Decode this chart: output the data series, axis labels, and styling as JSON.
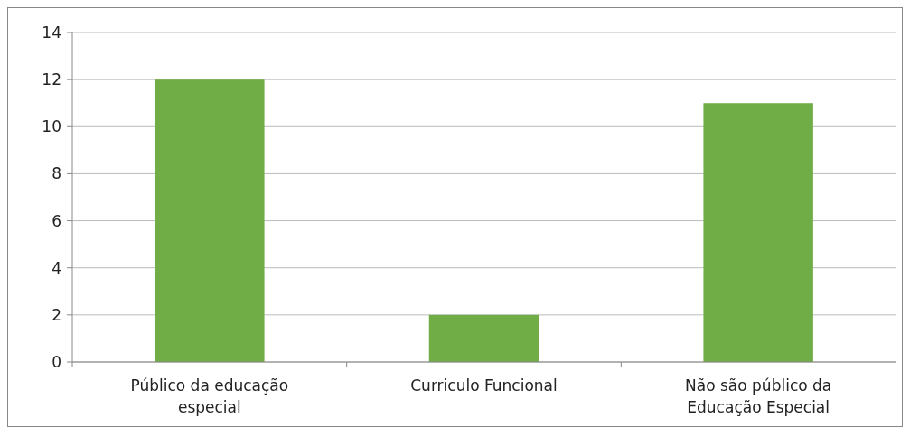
{
  "chart_data": {
    "type": "bar",
    "categories": [
      "Público da educação especial",
      "Curriculo Funcional",
      "Não são público da Educação Especial"
    ],
    "values": [
      12,
      2,
      11
    ],
    "color": "#70ad47",
    "ylim": [
      0,
      14
    ],
    "yticks": [
      0,
      2,
      4,
      6,
      8,
      10,
      12,
      14
    ],
    "grid": "y"
  }
}
